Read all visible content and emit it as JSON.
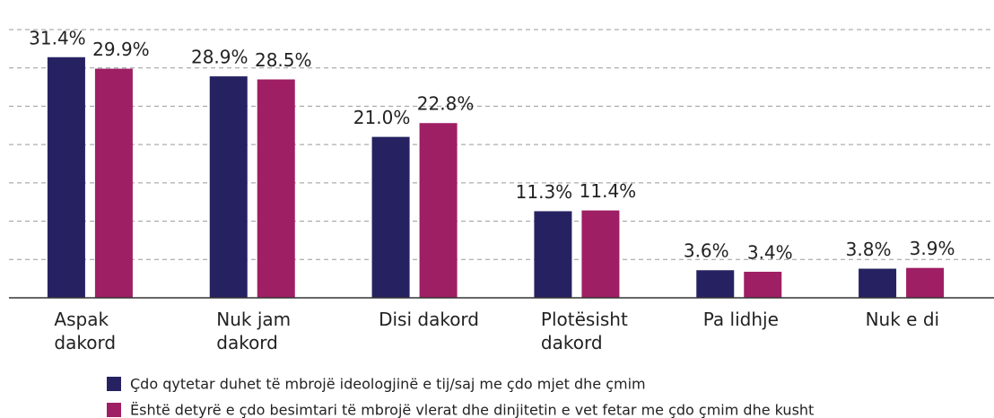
{
  "chart_data": {
    "type": "bar",
    "categories": [
      "Aspak dakord",
      "Nuk jam dakord",
      "Disi dakord",
      "Plotësisht dakord",
      "Pa lidhje",
      "Nuk e di"
    ],
    "series": [
      {
        "name": "Çdo qytetar duhet të mbrojë ideologjinë e tij/saj me çdo mjet dhe çmim",
        "color": "#262262",
        "values": [
          31.4,
          28.9,
          21.0,
          11.3,
          3.6,
          3.8
        ],
        "value_labels": [
          "31.4%",
          "28.9%",
          "21.0%",
          "11.3%",
          "3.6%",
          "3.8%"
        ]
      },
      {
        "name": "Është detyrë e çdo besimtari të mbrojë vlerat dhe dinjitetin e vet fetar me çdo çmim dhe kusht",
        "color": "#9e1f63",
        "values": [
          29.9,
          28.5,
          22.8,
          11.4,
          3.4,
          3.9
        ],
        "value_labels": [
          "29.9%",
          "28.5%",
          "22.8%",
          "11.4%",
          "3.4%",
          "3.9%"
        ]
      }
    ],
    "ylim": [
      0,
      35
    ],
    "yticks": [
      0,
      5,
      10,
      15,
      20,
      25,
      30,
      35
    ],
    "grid": true
  }
}
